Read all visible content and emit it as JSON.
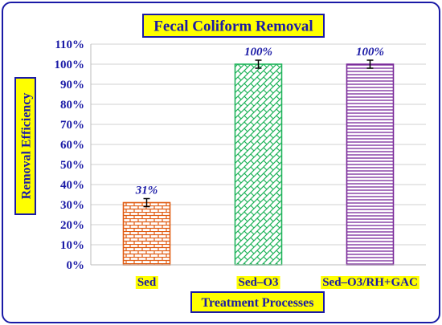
{
  "chart_data": {
    "type": "bar",
    "title": "Fecal Coliform Removal",
    "xlabel": "Treatment Processes",
    "ylabel": "Removal Efficiency",
    "categories": [
      "Sed",
      "Sed–O3",
      "Sed–O3/RH+GAC"
    ],
    "values": [
      31,
      100,
      100
    ],
    "errors": [
      2,
      2,
      2
    ],
    "data_labels": [
      "31%",
      "100%",
      "100%"
    ],
    "ylim": [
      0,
      110
    ],
    "yticks": [
      "0%",
      "10%",
      "20%",
      "30%",
      "40%",
      "50%",
      "60%",
      "70%",
      "80%",
      "90%",
      "100%",
      "110%"
    ],
    "grid": true,
    "legend": "none",
    "colors": {
      "text": "#1a1aa6",
      "label_background": "#ffff00",
      "bars": [
        "#e05a10",
        "#1fb35a",
        "#7a2a9a"
      ],
      "grid": "#d0d0d0"
    },
    "patterns": [
      "brick",
      "diagonal-brick",
      "horizontal-lines"
    ]
  }
}
